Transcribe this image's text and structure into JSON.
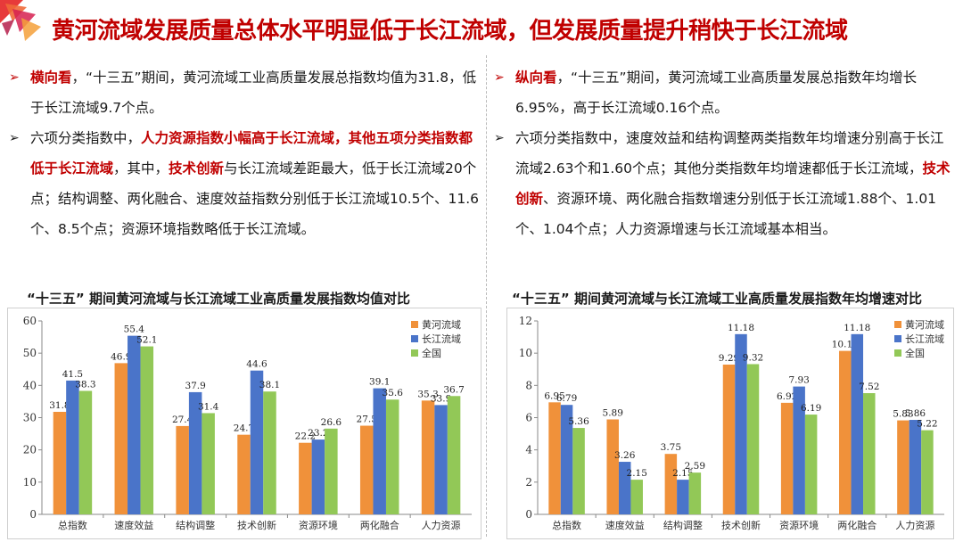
{
  "header": {
    "title": "黄河流域发展质量总体水平明显低于长江流域，但发展质量提升稍快于长江流域"
  },
  "left": {
    "p1": {
      "label": "横向看",
      "text": "，“十三五”期间，黄河流域工业高质量发展总指数均值为31.8，低于长江流域9.7个点。"
    },
    "p2": {
      "t1": "六项分类指数中，",
      "h1": "人力资源指数小幅高于长江流域，其他五项分类指数都低于长江流域",
      "t2": "，其中，",
      "h2": "技术创新",
      "t3": "与长江流域差距最大，低于长江流域20个点；结构调整、两化融合、速度效益指数分别低于长江流域10.5个、11.6个、8.5个点；资源环境指数略低于长江流域。"
    }
  },
  "right": {
    "p1": {
      "label": "纵向看",
      "text": "，“十三五”期间，黄河流域工业高质量发展总指数年均增长6.95%，高于长江流域0.16个点。"
    },
    "p2": {
      "t1": "六项分类指数中，速度效益和结构调整两类指数年均增速分别高于长江流域2.63个和1.60个点；其他分类指数年均增速都低于长江流域，",
      "h1": "技术创新",
      "t2": "、资源环境、两化融合指数增速分别低于长江流域1.88个、1.01个、1.04个点；人力资源增速与长江流域基本相当。"
    }
  },
  "colors": {
    "yellow_river": "#f0913a",
    "yangtze": "#4a74c9",
    "national": "#92c857"
  },
  "chart_data": [
    {
      "type": "bar",
      "title": "“十三五” 期间黄河流域与长江流域工业高质量发展指数均值对比",
      "categories": [
        "总指数",
        "速度效益",
        "结构调整",
        "技术创新",
        "资源环境",
        "两化融合",
        "人力资源"
      ],
      "series": [
        {
          "name": "黄河流域",
          "values": [
            31.8,
            46.9,
            27.4,
            24.7,
            22.2,
            27.5,
            35.3
          ]
        },
        {
          "name": "长江流域",
          "values": [
            41.5,
            55.4,
            37.9,
            44.6,
            23.2,
            39.1,
            33.9
          ]
        },
        {
          "name": "全国",
          "values": [
            38.3,
            52.1,
            31.4,
            38.1,
            26.6,
            35.6,
            36.7
          ]
        }
      ],
      "ylim": [
        0,
        60
      ],
      "yticks": [
        0,
        10,
        20,
        30,
        40,
        50,
        60
      ],
      "legend": "top-right",
      "grid": false
    },
    {
      "type": "bar",
      "title": "“十三五” 期间黄河流域与长江流域工业高质量发展指数年均增速对比",
      "categories": [
        "总指数",
        "速度效益",
        "结构调整",
        "技术创新",
        "资源环境",
        "两化融合",
        "人力资源"
      ],
      "series": [
        {
          "name": "黄河流域",
          "values": [
            6.95,
            5.89,
            3.75,
            9.29,
            6.92,
            10.14,
            5.83
          ]
        },
        {
          "name": "长江流域",
          "values": [
            6.79,
            3.26,
            2.15,
            11.18,
            7.93,
            11.18,
            5.86
          ]
        },
        {
          "name": "全国",
          "values": [
            5.36,
            2.15,
            2.59,
            9.32,
            6.19,
            7.52,
            5.22
          ]
        }
      ],
      "ylim": [
        0,
        12
      ],
      "yticks": [
        0,
        2,
        4,
        6,
        8,
        10,
        12
      ],
      "legend": "top-right",
      "grid": false
    }
  ]
}
